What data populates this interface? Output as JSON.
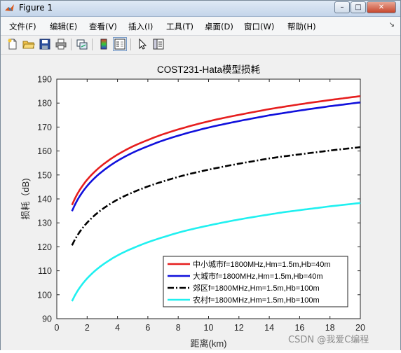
{
  "window": {
    "title": "Figure 1",
    "buttons": {
      "minimize": "–",
      "maximize": "□",
      "close": "✕"
    }
  },
  "menu": {
    "items": [
      {
        "label": "文件(F)"
      },
      {
        "label": "编辑(E)"
      },
      {
        "label": "查看(V)"
      },
      {
        "label": "插入(I)"
      },
      {
        "label": "工具(T)"
      },
      {
        "label": "桌面(D)"
      },
      {
        "label": "窗口(W)"
      },
      {
        "label": "帮助(H)"
      }
    ],
    "overflow_icon": "dock-arrow-icon"
  },
  "toolbar": {
    "icons": [
      "new-figure-icon",
      "open-file-icon",
      "save-icon",
      "print-icon",
      "link-plot-icon",
      "insert-colorbar-icon",
      "insert-legend-icon",
      "edit-plot-arrow-icon",
      "property-inspector-icon"
    ]
  },
  "watermark": "CSDN @我爱C编程",
  "colors": {
    "series1": "#e61e1e",
    "series2": "#1010dc",
    "series3": "#000000",
    "series4": "#20f0f0"
  },
  "chart_data": {
    "type": "line",
    "title": "COST231-Hata模型损耗",
    "xlabel": "距离(km)",
    "ylabel": "损耗（dB)",
    "xlim": [
      0,
      20
    ],
    "ylim": [
      90,
      190
    ],
    "xticks": [
      0,
      2,
      4,
      6,
      8,
      10,
      12,
      14,
      16,
      18,
      20
    ],
    "yticks": [
      90,
      100,
      110,
      120,
      130,
      140,
      150,
      160,
      170,
      180,
      190
    ],
    "legend_position": "bottom-right",
    "grid": false,
    "x": [
      1,
      2,
      3,
      4,
      5,
      6,
      7,
      8,
      9,
      10,
      11,
      12,
      13,
      14,
      15,
      16,
      17,
      18,
      19,
      20
    ],
    "series": [
      {
        "name": "中小城市f=1800MHz,Hm=1.5m,Hb=40m",
        "style": "solid",
        "values": [
          137.5,
          148.0,
          154.1,
          158.5,
          161.9,
          164.6,
          167.0,
          169.0,
          170.8,
          172.4,
          173.8,
          175.1,
          176.3,
          177.5,
          178.5,
          179.5,
          180.4,
          181.3,
          182.1,
          182.9
        ]
      },
      {
        "name": "大城市f=1800MHz,Hm=1.5m,Hb=40m",
        "style": "solid",
        "values": [
          134.9,
          145.4,
          151.5,
          155.9,
          159.3,
          162.0,
          164.4,
          166.4,
          168.2,
          169.8,
          171.2,
          172.5,
          173.7,
          174.9,
          175.9,
          176.9,
          177.8,
          178.7,
          179.5,
          180.3
        ]
      },
      {
        "name": "郊区f=1800MHz,Hm=1.5m,Hb=100m",
        "style": "dashdot",
        "values": [
          120.6,
          130.1,
          135.7,
          139.7,
          142.7,
          145.2,
          147.3,
          149.2,
          150.8,
          152.2,
          153.5,
          154.7,
          155.8,
          156.9,
          157.8,
          158.6,
          159.4,
          160.2,
          160.9,
          161.6
        ]
      },
      {
        "name": "农村f=1800MHz,Hm=1.5m,Hb=100m",
        "style": "solid",
        "values": [
          97.3,
          106.8,
          112.4,
          116.4,
          119.4,
          121.9,
          124.0,
          125.9,
          127.5,
          128.9,
          130.2,
          131.4,
          132.5,
          133.5,
          134.5,
          135.3,
          136.1,
          136.9,
          137.6,
          138.3
        ]
      }
    ]
  }
}
